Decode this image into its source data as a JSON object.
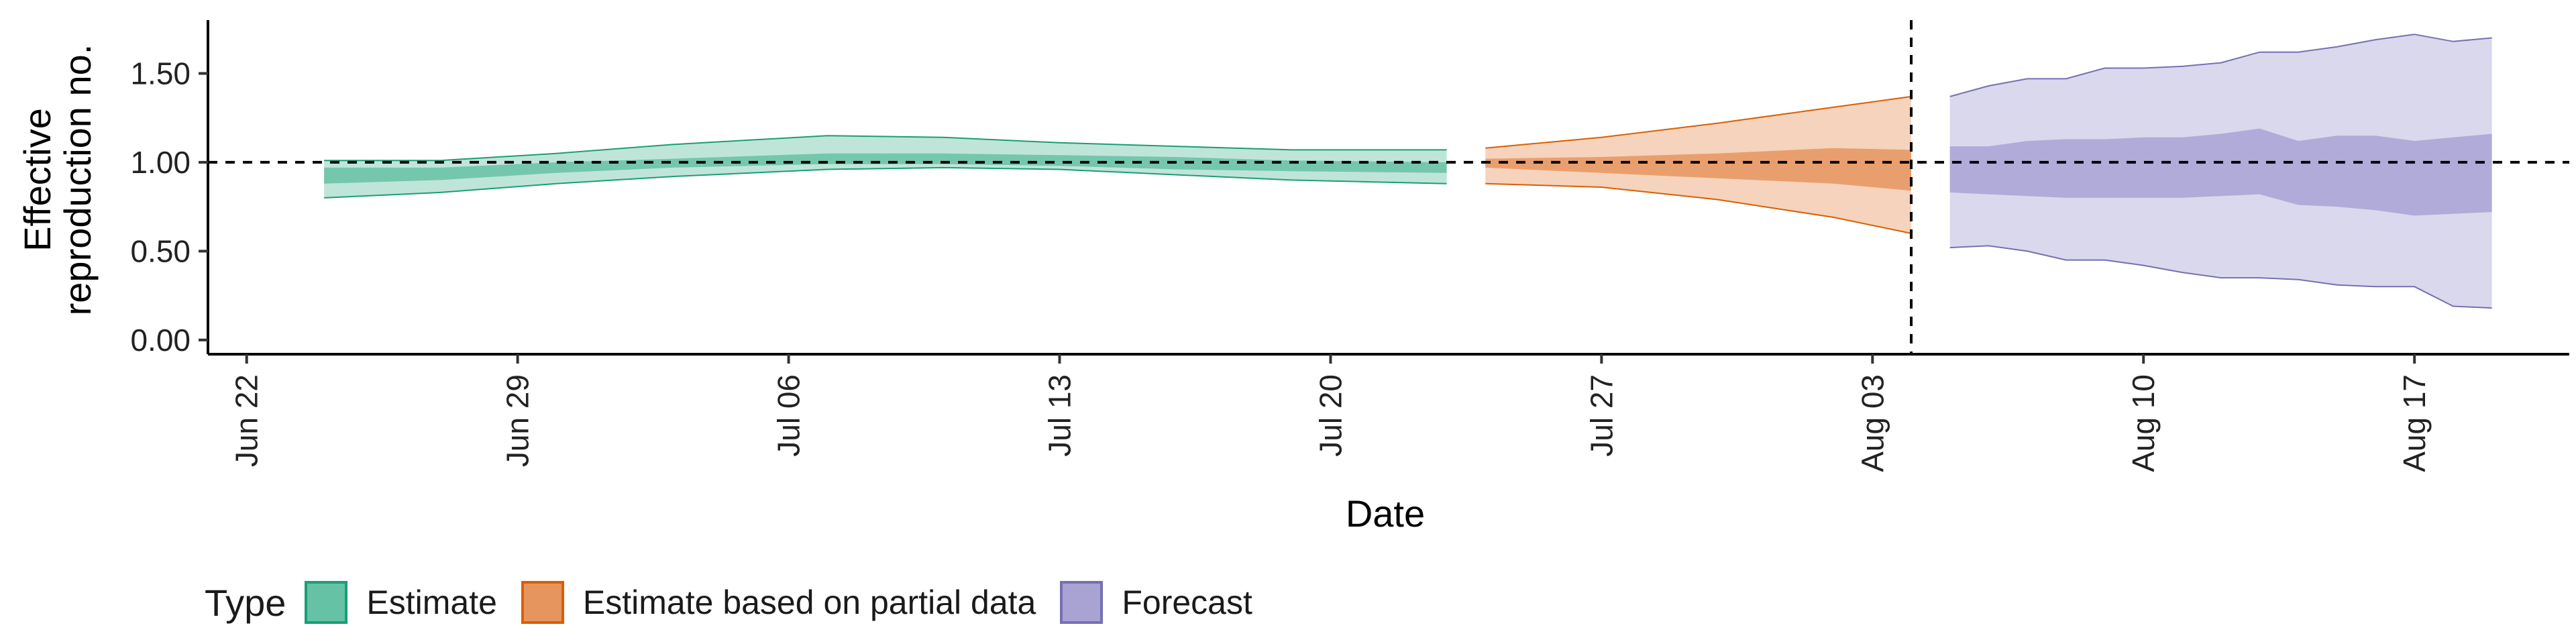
{
  "chart_data": {
    "type": "area",
    "xlabel": "Date",
    "ylabel": [
      "Effective",
      "reproduction no."
    ],
    "x_ticks": [
      "2020-06-22",
      "2020-06-29",
      "2020-07-06",
      "2020-07-13",
      "2020-07-20",
      "2020-07-27",
      "2020-08-03",
      "2020-08-10",
      "2020-08-17"
    ],
    "x_tick_labels": [
      "Jun 22",
      "Jun 29",
      "Jul 06",
      "Jul 13",
      "Jul 20",
      "Jul 27",
      "Aug 03",
      "Aug 10",
      "Aug 17"
    ],
    "xlim": [
      "2020-06-21",
      "2020-08-21"
    ],
    "y_ticks": [
      0,
      0.5,
      1,
      1.5
    ],
    "y_tick_labels": [
      "0.00",
      "0.50",
      "1.00",
      "1.50"
    ],
    "ylim": [
      -0.08,
      1.8
    ],
    "reference_hline": 1.0,
    "reference_vline": "2020-08-04",
    "grid": false,
    "legend_title": "Type",
    "legend_position": "bottom",
    "series": [
      {
        "name": "Estimate",
        "fill": "#66C2A5",
        "line": "#1B9E77",
        "x": [
          "2020-06-24",
          "2020-06-27",
          "2020-06-30",
          "2020-07-03",
          "2020-07-07",
          "2020-07-10",
          "2020-07-13",
          "2020-07-16",
          "2020-07-19",
          "2020-07-23"
        ],
        "outer_lower": [
          0.8,
          0.83,
          0.88,
          0.92,
          0.96,
          0.97,
          0.96,
          0.93,
          0.9,
          0.88
        ],
        "outer_upper": [
          1.01,
          1.01,
          1.05,
          1.1,
          1.15,
          1.14,
          1.11,
          1.09,
          1.07,
          1.07
        ],
        "inner_lower": [
          0.88,
          0.9,
          0.94,
          0.97,
          0.99,
          0.99,
          0.98,
          0.96,
          0.95,
          0.94
        ],
        "inner_upper": [
          0.97,
          0.97,
          1.0,
          1.02,
          1.05,
          1.05,
          1.04,
          1.03,
          1.01,
          1.0
        ]
      },
      {
        "name": "Estimate based on partial data",
        "fill": "#E6955F",
        "line": "#D95F02",
        "x": [
          "2020-07-24",
          "2020-07-27",
          "2020-07-30",
          "2020-08-02",
          "2020-08-04"
        ],
        "outer_lower": [
          0.88,
          0.86,
          0.79,
          0.69,
          0.6
        ],
        "outer_upper": [
          1.08,
          1.14,
          1.22,
          1.31,
          1.37
        ],
        "inner_lower": [
          0.97,
          0.94,
          0.91,
          0.88,
          0.84
        ],
        "inner_upper": [
          1.02,
          1.03,
          1.05,
          1.08,
          1.07
        ]
      },
      {
        "name": "Forecast",
        "fill": "#A8A3D3",
        "line": "#7570B3",
        "x": [
          "2020-08-05",
          "2020-08-06",
          "2020-08-07",
          "2020-08-08",
          "2020-08-09",
          "2020-08-10",
          "2020-08-11",
          "2020-08-12",
          "2020-08-13",
          "2020-08-14",
          "2020-08-15",
          "2020-08-16",
          "2020-08-17",
          "2020-08-18",
          "2020-08-19"
        ],
        "outer_lower": [
          0.52,
          0.53,
          0.5,
          0.45,
          0.45,
          0.42,
          0.38,
          0.35,
          0.35,
          0.34,
          0.31,
          0.3,
          0.3,
          0.19,
          0.18
        ],
        "outer_upper": [
          1.37,
          1.43,
          1.47,
          1.47,
          1.53,
          1.53,
          1.54,
          1.56,
          1.62,
          1.62,
          1.65,
          1.69,
          1.72,
          1.68,
          1.7
        ],
        "inner_lower": [
          0.83,
          0.82,
          0.81,
          0.8,
          0.8,
          0.8,
          0.8,
          0.81,
          0.82,
          0.76,
          0.75,
          0.73,
          0.7,
          0.71,
          0.72
        ],
        "inner_upper": [
          1.09,
          1.09,
          1.12,
          1.13,
          1.13,
          1.14,
          1.14,
          1.16,
          1.19,
          1.12,
          1.15,
          1.15,
          1.12,
          1.14,
          1.16
        ]
      }
    ]
  }
}
